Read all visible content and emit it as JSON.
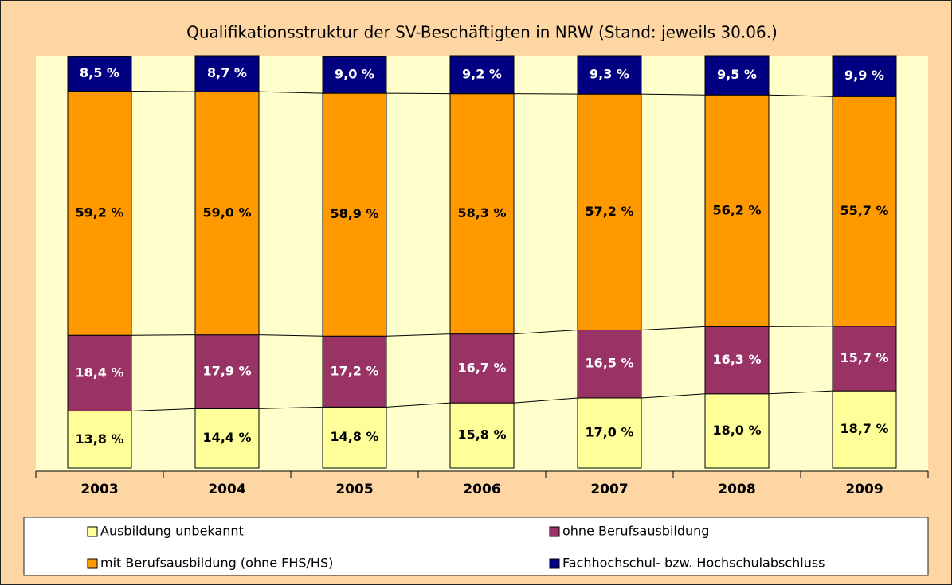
{
  "chart_data": {
    "type": "stacked_bar",
    "title": "Qualifikationsstruktur der SV-Beschäftigten in NRW (Stand: jeweils 30.06.)",
    "categories": [
      "2003",
      "2004",
      "2005",
      "2006",
      "2007",
      "2008",
      "2009"
    ],
    "ylim": [
      0,
      100
    ],
    "series": [
      {
        "name": "Ausbildung unbekannt",
        "color": "#ffff99",
        "label_color": "#000000",
        "values": [
          13.8,
          14.4,
          14.8,
          15.8,
          17.0,
          18.0,
          18.7
        ],
        "value_labels": [
          "13,8 %",
          "14,4 %",
          "14,8 %",
          "15,8 %",
          "17,0 %",
          "18,0 %",
          "18,7 %"
        ]
      },
      {
        "name": "ohne Berufsausbildung",
        "color": "#993366",
        "label_color": "#ffffff",
        "values": [
          18.4,
          17.9,
          17.2,
          16.7,
          16.5,
          16.3,
          15.7
        ],
        "value_labels": [
          "18,4 %",
          "17,9 %",
          "17,2 %",
          "16,7 %",
          "16,5 %",
          "16,3 %",
          "15,7 %"
        ]
      },
      {
        "name": "mit Berufsausbildung (ohne FHS/HS)",
        "color": "#ff9900",
        "label_color": "#000000",
        "values": [
          59.2,
          59.0,
          58.9,
          58.3,
          57.2,
          56.2,
          55.7
        ],
        "value_labels": [
          "59,2 %",
          "59,0 %",
          "58,9 %",
          "58,3 %",
          "57,2 %",
          "56,2 %",
          "55,7 %"
        ]
      },
      {
        "name": "Fachhochschul- bzw. Hochschulabschluss",
        "color": "#000080",
        "label_color": "#ffffff",
        "values": [
          8.5,
          8.7,
          9.0,
          9.2,
          9.3,
          9.5,
          9.9
        ],
        "value_labels": [
          "8,5 %",
          "8,7 %",
          "9,0 %",
          "9,2 %",
          "9,3 %",
          "9,5 %",
          "9,9 %"
        ]
      }
    ]
  }
}
